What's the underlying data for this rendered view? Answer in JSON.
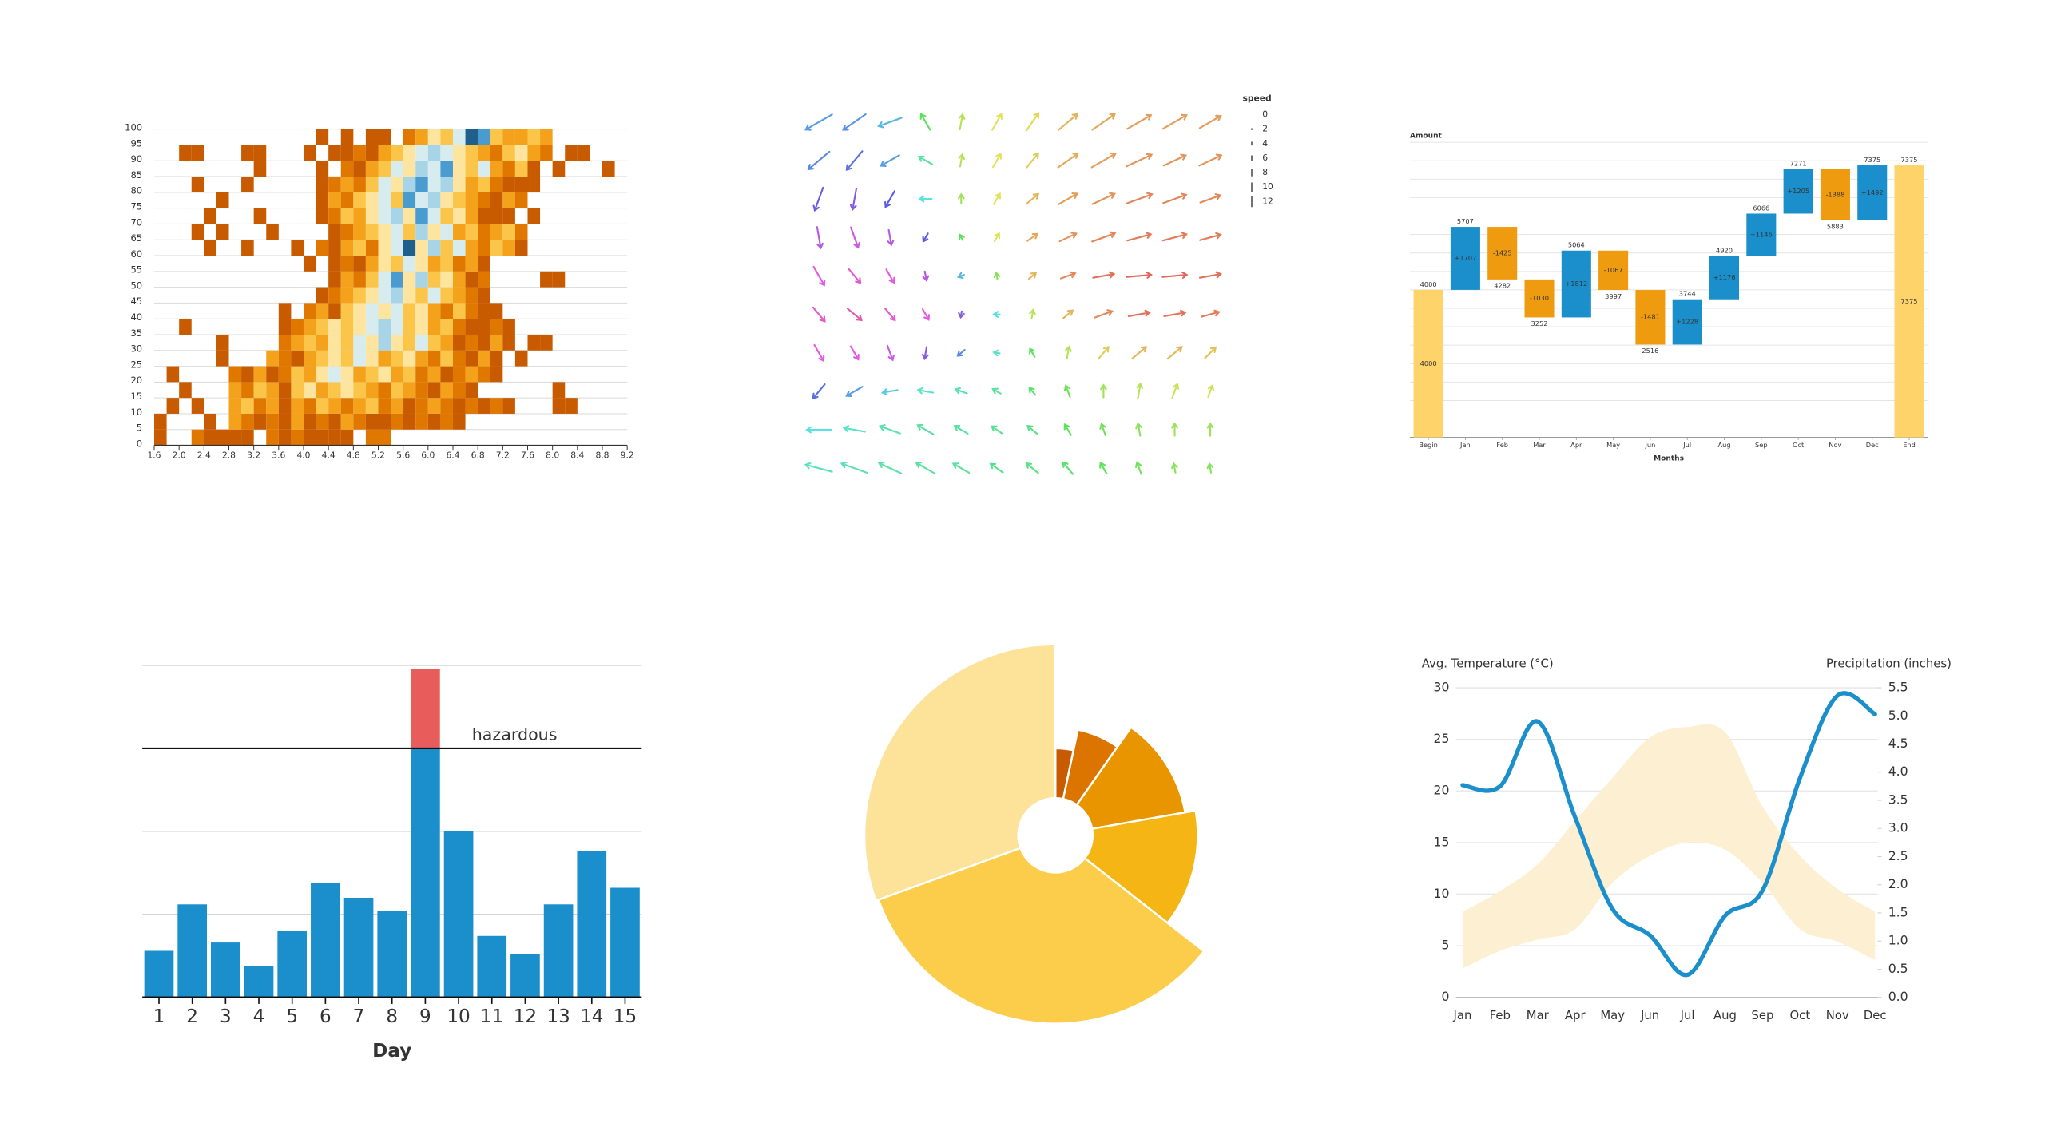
{
  "chart_data": [
    {
      "type": "heatmap",
      "x": [
        1.6,
        1.8,
        2,
        2.2,
        2.4,
        2.6,
        2.8,
        3,
        3.2,
        3.4,
        3.6,
        3.8,
        4,
        4.2,
        4.4,
        4.6,
        4.8,
        5,
        5.2,
        5.4,
        5.6,
        5.8,
        6,
        6.2,
        6.4,
        6.6,
        6.8,
        7,
        7.2,
        7.4,
        7.6,
        7.8,
        8,
        8.2,
        8.4,
        8.6,
        8.8,
        9
      ],
      "y": [
        0,
        5,
        10,
        15,
        20,
        25,
        30,
        35,
        40,
        45,
        50,
        55,
        60,
        65,
        70,
        75,
        80,
        85,
        90,
        95
      ],
      "z": [
        [
          1,
          null,
          null,
          2,
          1,
          1,
          1,
          1,
          null,
          2,
          1,
          2,
          1,
          1,
          1,
          1,
          null,
          2,
          2
        ],
        [
          1,
          null,
          null,
          null,
          1,
          null,
          3,
          2,
          1,
          2,
          1,
          3,
          1,
          2,
          1,
          3,
          2,
          1,
          1,
          2,
          1,
          2,
          1,
          2,
          1
        ],
        [
          null,
          1,
          null,
          1,
          null,
          null,
          3,
          4,
          2,
          3,
          1,
          3,
          2,
          4,
          3,
          2,
          3,
          4,
          2,
          3,
          1,
          2,
          3,
          2,
          1,
          2,
          1,
          2,
          1,
          null,
          null,
          null,
          1,
          1
        ],
        [
          null,
          null,
          1,
          null,
          null,
          null,
          3,
          2,
          4,
          3,
          1,
          4,
          5,
          3,
          4,
          5,
          4,
          3,
          2,
          4,
          3,
          2,
          1,
          3,
          2,
          1,
          null,
          null,
          null,
          null,
          null,
          null,
          1
        ],
        [
          null,
          1,
          null,
          null,
          null,
          null,
          2,
          1,
          3,
          1,
          2,
          4,
          3,
          5,
          6,
          5,
          3,
          4,
          5,
          3,
          4,
          2,
          3,
          1,
          2,
          3,
          2,
          1
        ],
        [
          null,
          null,
          null,
          null,
          null,
          1,
          null,
          null,
          null,
          3,
          2,
          1,
          3,
          4,
          5,
          4,
          6,
          5,
          3,
          4,
          5,
          3,
          2,
          4,
          2,
          1,
          3,
          1,
          null,
          1
        ],
        [
          null,
          null,
          null,
          null,
          null,
          1,
          null,
          null,
          null,
          null,
          2,
          3,
          4,
          3,
          5,
          4,
          6,
          5,
          7,
          5,
          4,
          6,
          4,
          3,
          1,
          2,
          1,
          3,
          1,
          null,
          1,
          1
        ],
        [
          null,
          null,
          1,
          null,
          null,
          null,
          null,
          null,
          null,
          null,
          1,
          2,
          3,
          4,
          5,
          4,
          5,
          6,
          7,
          6,
          4,
          5,
          3,
          4,
          2,
          1,
          1,
          2,
          1
        ],
        [
          null,
          null,
          null,
          null,
          null,
          null,
          null,
          null,
          null,
          null,
          1,
          null,
          2,
          3,
          1,
          4,
          5,
          6,
          5,
          6,
          4,
          5,
          3,
          2,
          4,
          2,
          1,
          1
        ],
        [
          null,
          null,
          null,
          null,
          null,
          null,
          null,
          null,
          null,
          null,
          null,
          null,
          null,
          1,
          2,
          3,
          4,
          5,
          6,
          7,
          5,
          4,
          6,
          4,
          3,
          2,
          1
        ],
        [
          null,
          null,
          null,
          null,
          null,
          null,
          null,
          null,
          null,
          null,
          null,
          null,
          null,
          null,
          1,
          3,
          2,
          4,
          6,
          8,
          5,
          7,
          4,
          5,
          3,
          1,
          2,
          null,
          null,
          null,
          null,
          1,
          1
        ],
        [
          null,
          null,
          null,
          null,
          null,
          null,
          null,
          null,
          null,
          null,
          null,
          null,
          1,
          null,
          1,
          2,
          1,
          3,
          5,
          4,
          6,
          5,
          3,
          4,
          2,
          3,
          1
        ],
        [
          null,
          null,
          null,
          null,
          1,
          null,
          null,
          1,
          null,
          null,
          null,
          1,
          null,
          2,
          1,
          3,
          4,
          2,
          5,
          6,
          9,
          5,
          7,
          4,
          6,
          3,
          2,
          4,
          3,
          1
        ],
        [
          null,
          null,
          null,
          1,
          null,
          1,
          null,
          null,
          null,
          1,
          null,
          null,
          null,
          null,
          1,
          2,
          3,
          4,
          5,
          6,
          4,
          7,
          5,
          6,
          3,
          4,
          2,
          3,
          4,
          2
        ],
        [
          null,
          null,
          null,
          null,
          1,
          null,
          null,
          null,
          1,
          null,
          null,
          null,
          null,
          1,
          2,
          4,
          3,
          5,
          6,
          7,
          5,
          8,
          6,
          4,
          5,
          3,
          1,
          1,
          1,
          null,
          1
        ],
        [
          null,
          null,
          null,
          null,
          null,
          1,
          null,
          null,
          null,
          null,
          null,
          null,
          null,
          1,
          3,
          2,
          4,
          5,
          6,
          4,
          8,
          6,
          7,
          5,
          4,
          3,
          2,
          1,
          3,
          2
        ],
        [
          null,
          null,
          null,
          1,
          null,
          null,
          null,
          1,
          null,
          null,
          null,
          null,
          null,
          1,
          2,
          3,
          2,
          4,
          6,
          5,
          7,
          8,
          6,
          7,
          5,
          3,
          4,
          2,
          1,
          1,
          1
        ],
        [
          null,
          null,
          null,
          null,
          null,
          null,
          null,
          null,
          1,
          null,
          null,
          null,
          null,
          1,
          null,
          2,
          1,
          3,
          4,
          6,
          5,
          7,
          6,
          8,
          5,
          4,
          6,
          3,
          2,
          4,
          1,
          null,
          1,
          null,
          null,
          null,
          1
        ],
        [
          null,
          null,
          1,
          1,
          null,
          null,
          null,
          1,
          1,
          null,
          null,
          null,
          1,
          null,
          1,
          1,
          2,
          1,
          3,
          4,
          5,
          6,
          7,
          6,
          5,
          4,
          3,
          2,
          4,
          5,
          3,
          2,
          null,
          1,
          1
        ],
        [
          null,
          null,
          null,
          null,
          null,
          null,
          null,
          null,
          null,
          null,
          null,
          null,
          null,
          1,
          null,
          1,
          null,
          1,
          1,
          null,
          2,
          3,
          5,
          4,
          6,
          9,
          8,
          4,
          3,
          3,
          4,
          3
        ]
      ],
      "colors": [
        "#c85a00",
        "#e07800",
        "#f4a21c",
        "#fbc54a",
        "#fde5a0",
        "#d7ecef",
        "#a8d4e8",
        "#4a9bd0",
        "#1f5f8b"
      ],
      "xlim": [
        1.6,
        9.2
      ],
      "ylim": [
        0,
        100
      ],
      "xticks": [
        1.6,
        {
          "value": 2,
          "label": "2.0"
        },
        2.4,
        2.8,
        3.2,
        3.6,
        {
          "value": 4,
          "label": "4.0"
        },
        4.4,
        4.8,
        5.2,
        5.6,
        {
          "value": 6,
          "label": "6.0"
        },
        6.4,
        6.8,
        7.2,
        7.6,
        {
          "value": 8,
          "label": "8.0"
        },
        8.4,
        8.8,
        9.2
      ],
      "yticks": [
        0,
        5,
        10,
        15,
        20,
        25,
        30,
        35,
        40,
        45,
        50,
        55,
        60,
        65,
        70,
        75,
        80,
        85,
        90,
        95,
        100
      ],
      "grid": true
    },
    {
      "type": "quiver",
      "legend_title": "speed",
      "legend_speeds": [
        0,
        2,
        4,
        6,
        8,
        10,
        12
      ],
      "direction": [
        [
          210,
          215,
          200,
          120,
          80,
          60,
          55,
          40,
          35,
          30,
          30,
          30
        ],
        [
          220,
          230,
          210,
          150,
          80,
          60,
          50,
          35,
          30,
          25,
          25,
          25
        ],
        [
          250,
          260,
          240,
          180,
          90,
          60,
          40,
          30,
          25,
          20,
          20,
          20
        ],
        [
          280,
          290,
          280,
          240,
          120,
          60,
          35,
          25,
          20,
          15,
          15,
          15
        ],
        [
          300,
          310,
          300,
          280,
          200,
          100,
          40,
          20,
          10,
          5,
          5,
          10
        ],
        [
          310,
          320,
          310,
          300,
          260,
          180,
          80,
          40,
          20,
          10,
          10,
          15
        ],
        [
          300,
          300,
          290,
          260,
          220,
          170,
          120,
          80,
          50,
          40,
          40,
          45
        ],
        [
          230,
          210,
          190,
          170,
          160,
          150,
          130,
          110,
          90,
          80,
          70,
          70
        ],
        [
          180,
          170,
          160,
          150,
          150,
          145,
          140,
          120,
          110,
          100,
          90,
          90
        ],
        [
          165,
          160,
          155,
          150,
          150,
          145,
          140,
          130,
          120,
          110,
          100,
          100
        ]
      ],
      "speed": [
        [
          10,
          9,
          8,
          6,
          5,
          6,
          7,
          8,
          9,
          9,
          9,
          8
        ],
        [
          9,
          8,
          7,
          5,
          4,
          5,
          6,
          8,
          9,
          9,
          8,
          8
        ],
        [
          8,
          7,
          6,
          4,
          3,
          4,
          5,
          7,
          8,
          9,
          8,
          7
        ],
        [
          7,
          7,
          5,
          3,
          2,
          3,
          4,
          6,
          8,
          8,
          8,
          7
        ],
        [
          7,
          6,
          5,
          3,
          2,
          2,
          3,
          5,
          7,
          8,
          8,
          7
        ],
        [
          6,
          6,
          5,
          4,
          2,
          2,
          3,
          4,
          6,
          7,
          7,
          6
        ],
        [
          6,
          5,
          5,
          4,
          3,
          2,
          3,
          4,
          5,
          6,
          6,
          5
        ],
        [
          6,
          6,
          5,
          5,
          4,
          3,
          3,
          4,
          4,
          5,
          5,
          4
        ],
        [
          8,
          7,
          7,
          6,
          5,
          4,
          4,
          4,
          4,
          4,
          4,
          4
        ],
        [
          9,
          9,
          8,
          7,
          6,
          5,
          5,
          5,
          4,
          4,
          3,
          3
        ]
      ]
    },
    {
      "type": "waterfall",
      "y_label": "Amount",
      "x_label": "Months",
      "categories": [
        "Begin",
        "Jan",
        "Feb",
        "Mar",
        "Apr",
        "May",
        "Jun",
        "Jul",
        "Aug",
        "Sep",
        "Oct",
        "Nov",
        "Dec",
        "End"
      ],
      "values": [
        4000,
        1707,
        -1425,
        -1030,
        1812,
        -1067,
        -1481,
        1228,
        1176,
        1146,
        1205,
        -1388,
        1492,
        7375
      ],
      "value_labels": [
        "4000",
        "+1707",
        "-1425",
        "-1030",
        "+1812",
        "-1067",
        "-1481",
        "+1228",
        "+1176",
        "+1146",
        "+1205",
        "-1388",
        "+1492",
        "7375"
      ],
      "totals": [
        4000,
        5707,
        4282,
        3252,
        5064,
        3997,
        2516,
        3744,
        4920,
        6066,
        7271,
        5883,
        7375,
        7375
      ],
      "colors": {
        "total": "#fdd36a",
        "increase": "#1a8fcb",
        "decrease": "#ef9b0f"
      },
      "ylim": [
        0,
        8000
      ],
      "yticks": [
        0,
        500,
        1000,
        1500,
        2000,
        2500,
        3000,
        3500,
        4000,
        4500,
        5000,
        5500,
        6000,
        6500,
        7000,
        7500,
        8000
      ],
      "grid": true
    },
    {
      "type": "bar",
      "categories": [
        1,
        2,
        3,
        4,
        5,
        6,
        7,
        8,
        9,
        10,
        11,
        12,
        13,
        14,
        15
      ],
      "values": [
        28,
        56,
        33,
        19,
        40,
        69,
        60,
        52,
        198,
        100,
        37,
        26,
        56,
        88,
        66
      ],
      "color": "#1a8fcb",
      "threshold": {
        "value": 150,
        "label": "hazardous",
        "over_color": "#e85c5c"
      },
      "x_label": "Day",
      "ylim": [
        0,
        200
      ],
      "yticks": [
        0,
        50,
        100,
        150,
        200
      ],
      "grid": true
    },
    {
      "type": "pie",
      "values": [
        12,
        23,
        45,
        48,
        122,
        110
      ],
      "radii": [
        66,
        82,
        100,
        108,
        143,
        145
      ],
      "rlim": [
        0,
        150
      ],
      "colors": [
        "#c85a00",
        "#dc7400",
        "#e99500",
        "#f5b515",
        "#fbcd4b",
        "#fde39a"
      ]
    },
    {
      "type": "line",
      "categories": [
        "Jan",
        "Feb",
        "Mar",
        "Apr",
        "May",
        "Jun",
        "Jul",
        "Aug",
        "Sep",
        "Oct",
        "Nov",
        "Dec"
      ],
      "y_label": "Avg. Temperature (°C)",
      "y2_label": "Precipitation (inches)",
      "label_colors": {
        "y": "#8fc4a9",
        "y2": "#7fb9c9"
      },
      "ylim": [
        0,
        30
      ],
      "yticks": [
        0,
        5,
        10,
        15,
        20,
        25,
        30
      ],
      "y2lim": [
        0,
        5.5
      ],
      "y2ticks": [
        {
          "value": 0,
          "label": "0.0"
        },
        0.5,
        {
          "value": 1,
          "label": "1.0"
        },
        1.5,
        {
          "value": 2,
          "label": "2.0"
        },
        2.5,
        {
          "value": 3,
          "label": "3.0"
        },
        3.5,
        {
          "value": 4,
          "label": "4.0"
        },
        4.5,
        {
          "value": 5,
          "label": "5.0"
        },
        5.5
      ],
      "grid": true,
      "series": [
        {
          "type": "area",
          "color": "#fdf0d2",
          "low": [
            2.8,
            4.5,
            5.6,
            6.6,
            11.1,
            13.7,
            15,
            14.3,
            11.1,
            6.6,
            5.4,
            3.6
          ],
          "high": [
            8.3,
            10.3,
            12.9,
            17.1,
            21.3,
            25.2,
            26.2,
            25.7,
            18.5,
            13.7,
            10.5,
            8.3
          ]
        },
        {
          "type": "line",
          "axis": "y2",
          "color": "#1a8fcb",
          "values": [
            3.77,
            3.75,
            4.9,
            3.2,
            1.57,
            1.1,
            0.4,
            1.45,
            1.9,
            3.9,
            5.36,
            5.03
          ]
        }
      ]
    }
  ]
}
